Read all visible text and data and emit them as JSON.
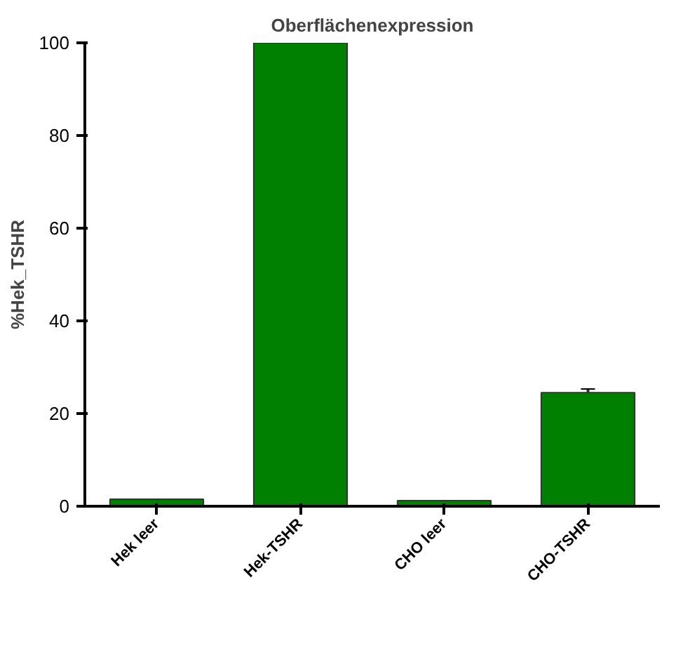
{
  "chart_data": {
    "type": "bar",
    "title": "Oberflächenexpression",
    "ylabel": "%Hek_TSHR",
    "categories": [
      "Hek leer",
      "Hek-TSHR",
      "CHO leer",
      "CHO-TSHR"
    ],
    "values": [
      1.5,
      100,
      1.2,
      24.5
    ],
    "errors": [
      null,
      null,
      null,
      0.8
    ],
    "color": "#008000",
    "ylim": [
      0,
      100
    ],
    "yticks": [
      0,
      20,
      40,
      60,
      80,
      100
    ],
    "grid": false
  }
}
